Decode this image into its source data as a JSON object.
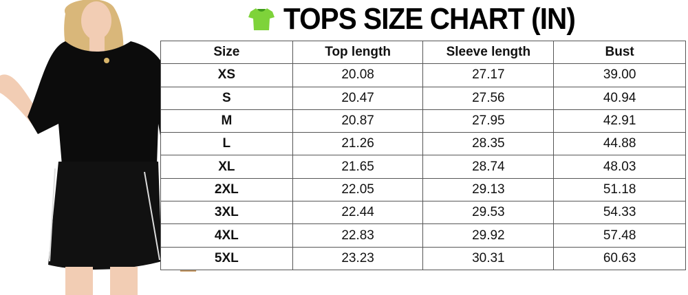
{
  "title": "TOPS SIZE CHART (IN)",
  "title_icon": "tshirt-icon",
  "colors": {
    "icon_green": "#7ed33a",
    "border": "#555555"
  },
  "table": {
    "headers": [
      "Size",
      "Top length",
      "Sleeve length",
      "Bust"
    ],
    "rows": [
      [
        "XS",
        "20.08",
        "27.17",
        "39.00"
      ],
      [
        "S",
        "20.47",
        "27.56",
        "40.94"
      ],
      [
        "M",
        "20.87",
        "27.95",
        "42.91"
      ],
      [
        "L",
        "21.26",
        "28.35",
        "44.88"
      ],
      [
        "XL",
        "21.65",
        "28.74",
        "48.03"
      ],
      [
        "2XL",
        "22.05",
        "29.13",
        "51.18"
      ],
      [
        "3XL",
        "22.44",
        "29.53",
        "54.33"
      ],
      [
        "4XL",
        "22.83",
        "29.92",
        "57.48"
      ],
      [
        "5XL",
        "23.23",
        "30.31",
        "60.63"
      ]
    ]
  }
}
